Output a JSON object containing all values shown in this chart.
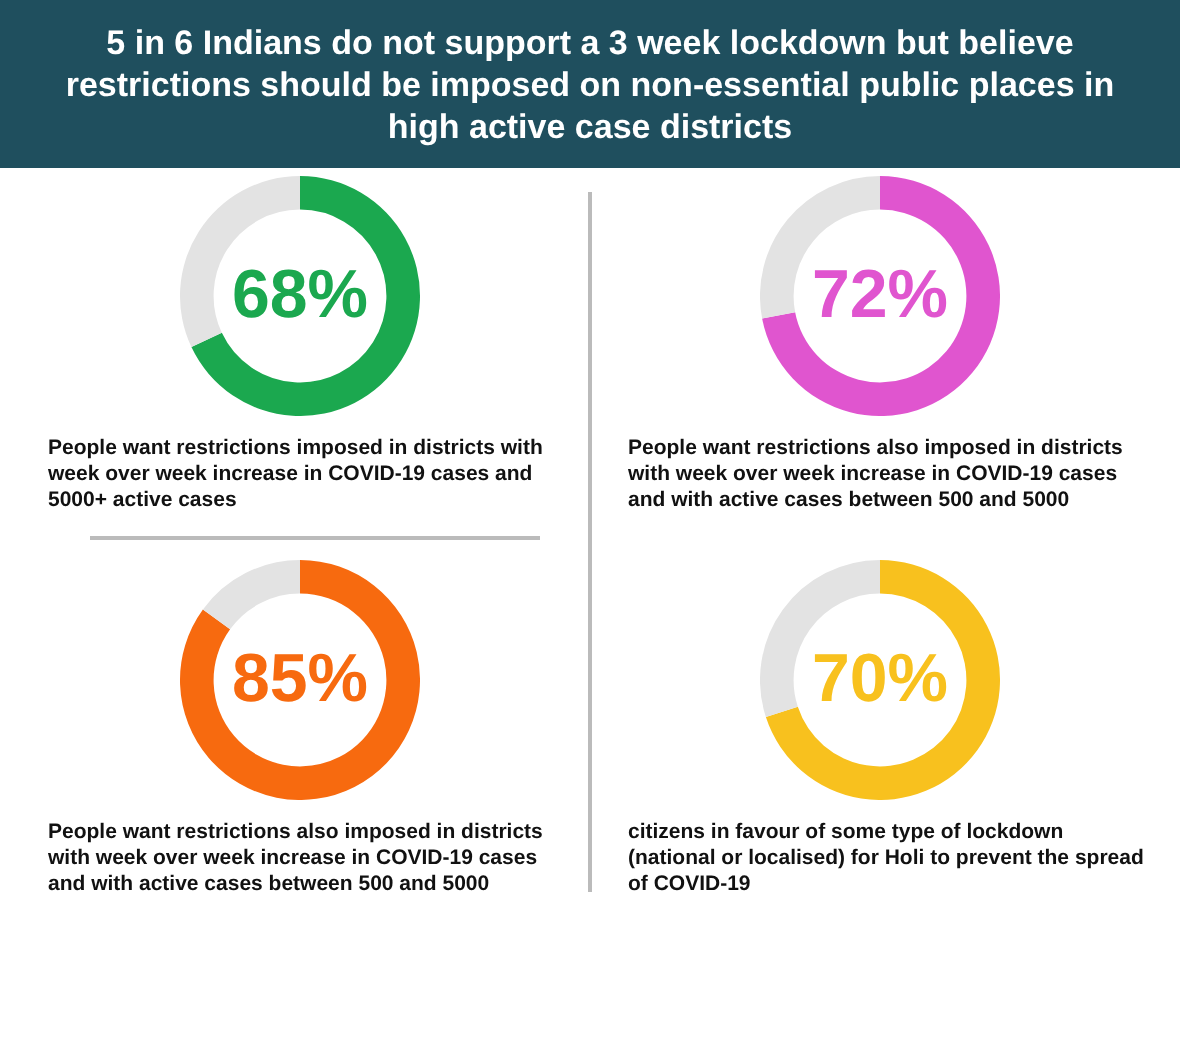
{
  "chart_data": [
    {
      "type": "donut",
      "title": "5 in 6 Indians do not support a 3 week lockdown but believe restrictions should be imposed on non-essential public places in high active case districts",
      "categories": [
        null,
        null
      ],
      "values": [
        68,
        32
      ],
      "colors": [
        "#1ba84f",
        "#e3e3e3"
      ],
      "value_labels": [
        "68%",
        null
      ],
      "annotations": [
        "People want restrictions imposed in districts with week over week increase in COVID-19 cases and 5000+ active cases"
      ]
    },
    {
      "type": "donut",
      "categories": [
        null,
        null
      ],
      "values": [
        72,
        28
      ],
      "colors": [
        "#e055cf",
        "#e3e3e3"
      ],
      "value_labels": [
        "72%",
        null
      ],
      "annotations": [
        "People want restrictions also imposed in districts with week over week increase in COVID-19 cases and with active cases between 500 and 5000"
      ]
    },
    {
      "type": "donut",
      "categories": [
        null,
        null
      ],
      "values": [
        85,
        15
      ],
      "colors": [
        "#f76a0f",
        "#e3e3e3"
      ],
      "value_labels": [
        "85%",
        null
      ],
      "annotations": [
        "People want restrictions also imposed in districts with week over week increase in COVID-19 cases and with active cases between 500 and 5000"
      ]
    },
    {
      "type": "donut",
      "categories": [
        null,
        null
      ],
      "values": [
        70,
        30
      ],
      "colors": [
        "#f8c11e",
        "#e3e3e3"
      ],
      "value_labels": [
        "70%",
        null
      ],
      "annotations": [
        "citizens in favour of some type of lockdown (national or localised) for Holi to prevent the spread of COVID-19"
      ]
    }
  ]
}
